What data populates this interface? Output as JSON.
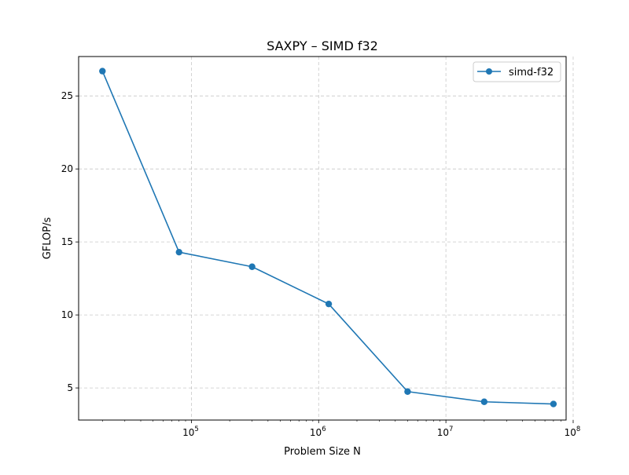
{
  "chart_data": {
    "type": "line",
    "title": "SAXPY – SIMD f32",
    "xlabel": "Problem Size N",
    "ylabel": "GFLOP/s",
    "x_scale": "log",
    "xlim": [
      13000,
      88000000
    ],
    "ylim": [
      2.8,
      27.7
    ],
    "x_ticks": [
      {
        "value": 100000,
        "mantissa": "10",
        "exponent": "5"
      },
      {
        "value": 1000000,
        "mantissa": "10",
        "exponent": "6"
      },
      {
        "value": 10000000,
        "mantissa": "10",
        "exponent": "7"
      },
      {
        "value": 100000000,
        "mantissa": "10",
        "exponent": "8"
      }
    ],
    "y_ticks": [
      {
        "value": 5,
        "label": "5"
      },
      {
        "value": 10,
        "label": "10"
      },
      {
        "value": 15,
        "label": "15"
      },
      {
        "value": 20,
        "label": "20"
      },
      {
        "value": 25,
        "label": "25"
      }
    ],
    "grid": true,
    "grid_style": "dashed",
    "legend_position": "top-right",
    "series": [
      {
        "name": "simd-f32",
        "color": "#1f77b4",
        "marker": "circle",
        "x": [
          20000,
          80000,
          300000,
          1200000,
          5000000,
          20000000,
          70000000
        ],
        "y": [
          26.7,
          14.3,
          13.3,
          10.75,
          4.75,
          4.05,
          3.9
        ]
      }
    ]
  }
}
